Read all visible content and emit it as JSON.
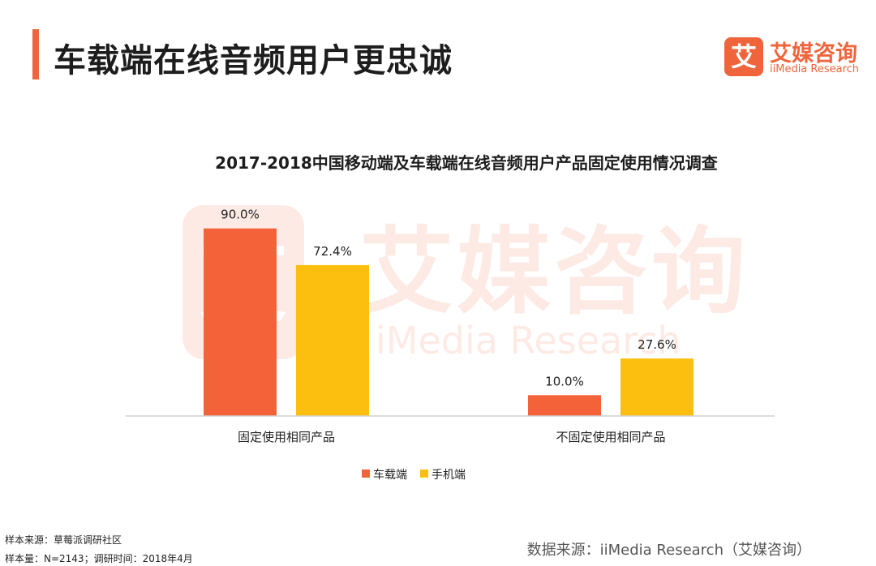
{
  "header": {
    "title": "车载端在线音频用户更忠诚",
    "logo_mark": "艾",
    "logo_cn": "艾媒咨询",
    "logo_en": "iiMedia Research"
  },
  "watermark": {
    "mark": "艾",
    "cn": "艾媒咨询",
    "en": "iMedia Research"
  },
  "chart_data": {
    "type": "bar",
    "title": "2017-2018中国移动端及车载端在线音频用户产品固定使用情况调查",
    "categories": [
      "固定使用相同产品",
      "不固定使用相同产品"
    ],
    "series": [
      {
        "name": "车载端",
        "values": [
          90.0,
          10.0
        ],
        "labels": [
          "90.0%",
          "10.0%"
        ],
        "color": "#f4623a"
      },
      {
        "name": "手机端",
        "values": [
          72.4,
          27.6
        ],
        "labels": [
          "72.4%",
          "27.6%"
        ],
        "color": "#fcbf0f"
      }
    ],
    "ylim": [
      0,
      100
    ],
    "grid": false,
    "legend": "bottom-center"
  },
  "footer": {
    "sample_source": "样本来源：草莓派调研社区",
    "sample_info": "样本量：N=2143；调研时间：2018年4月",
    "data_source": "数据来源：iiMedia Research（艾媒咨询）"
  }
}
